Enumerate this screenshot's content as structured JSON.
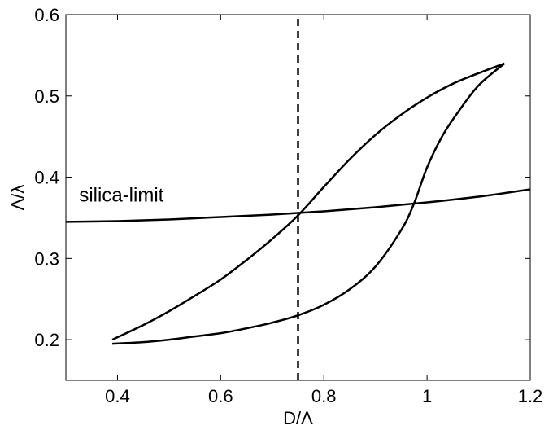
{
  "chart_data": {
    "type": "line",
    "title": "",
    "xlabel": "D/Λ",
    "ylabel": "Λ/λ",
    "xlim": [
      0.3,
      1.2
    ],
    "ylim": [
      0.15,
      0.6
    ],
    "grid": false,
    "xticks": [
      0.4,
      0.6,
      0.8,
      1.0,
      1.2
    ],
    "xtick_labels": [
      "0.4",
      "0.6",
      "0.8",
      "1",
      "1.2"
    ],
    "yticks": [
      0.2,
      0.3,
      0.4,
      0.5,
      0.6
    ],
    "ytick_labels": [
      "0.2",
      "0.3",
      "0.4",
      "0.5",
      "0.6"
    ],
    "line_color": "#000000",
    "series": [
      {
        "style": "solid",
        "x": [
          0.39,
          0.45,
          0.5,
          0.55,
          0.6,
          0.65,
          0.7,
          0.75,
          0.8,
          0.85,
          0.9,
          0.95,
          1.0,
          1.05,
          1.1,
          1.15
        ],
        "y": [
          0.2,
          0.218,
          0.235,
          0.254,
          0.274,
          0.298,
          0.324,
          0.353,
          0.388,
          0.422,
          0.452,
          0.477,
          0.498,
          0.515,
          0.528,
          0.54
        ]
      },
      {
        "style": "solid",
        "x": [
          0.39,
          0.45,
          0.5,
          0.55,
          0.6,
          0.65,
          0.7,
          0.75,
          0.8,
          0.85,
          0.9,
          0.95,
          0.975,
          1.0,
          1.03,
          1.06,
          1.1,
          1.15
        ],
        "y": [
          0.195,
          0.197,
          0.2,
          0.204,
          0.208,
          0.214,
          0.221,
          0.23,
          0.243,
          0.262,
          0.29,
          0.335,
          0.368,
          0.412,
          0.451,
          0.48,
          0.513,
          0.54
        ]
      },
      {
        "style": "solid",
        "x": [
          0.3,
          0.4,
          0.5,
          0.6,
          0.7,
          0.8,
          0.9,
          1.0,
          1.1,
          1.2
        ],
        "y": [
          0.345,
          0.346,
          0.348,
          0.351,
          0.354,
          0.358,
          0.363,
          0.369,
          0.376,
          0.385
        ]
      },
      {
        "style": "dashed",
        "x": [
          0.75,
          0.75
        ],
        "y": [
          0.15,
          0.6
        ]
      }
    ],
    "annotations": [
      {
        "text": "silica-limit",
        "x": 0.31,
        "y": 0.378
      }
    ]
  }
}
